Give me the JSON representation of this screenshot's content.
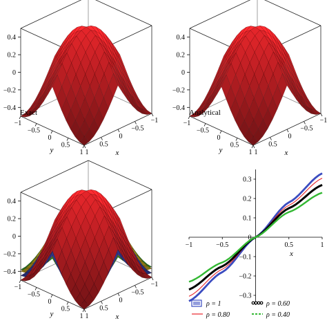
{
  "chart_data": [
    {
      "type": "surface",
      "panel": "top-left",
      "label": "Exact",
      "xlabel": "x",
      "ylabel": "y",
      "x_ticks": [
        "1",
        "0.5",
        "0",
        "−0.5",
        "−1"
      ],
      "y_ticks": [
        "−1",
        "−0.5",
        "0",
        "0.5",
        "1"
      ],
      "z_ticks": [
        "0.4",
        "0.2",
        "0",
        "−0.2",
        "−0.4"
      ],
      "xlim": [
        -1,
        1
      ],
      "ylim": [
        -1,
        1
      ],
      "zlim": [
        -0.5,
        0.5
      ],
      "surface_color": "#e8262b",
      "series": [
        {
          "color": "#e8262b",
          "peak_x": 0,
          "peak_y": 0,
          "peak_z": 0.5,
          "corner_z": -0.5
        }
      ]
    },
    {
      "type": "surface",
      "panel": "top-right",
      "label": "Analytical",
      "xlabel": "x",
      "ylabel": "y",
      "x_ticks": [
        "1",
        "0.5",
        "0",
        "−0.5",
        "−1"
      ],
      "y_ticks": [
        "−1",
        "−0.5",
        "0",
        "0.5",
        "1"
      ],
      "z_ticks": [
        "0.4",
        "0.2",
        "0",
        "−0.2",
        "−0.4"
      ],
      "xlim": [
        -1,
        1
      ],
      "ylim": [
        -1,
        1
      ],
      "zlim": [
        -0.5,
        0.5
      ],
      "surface_color": "#e8262b",
      "series": [
        {
          "color": "#e8262b",
          "peak_x": 0,
          "peak_y": 0,
          "peak_z": 0.5,
          "corner_z": -0.5
        }
      ]
    },
    {
      "type": "surface",
      "panel": "bottom-left",
      "label": "",
      "xlabel": "x",
      "ylabel": "y",
      "x_ticks": [
        "1",
        "0.5",
        "0",
        "−0.5",
        "−1"
      ],
      "y_ticks": [
        "−1",
        "−0.5",
        "0",
        "0.5",
        "1"
      ],
      "z_ticks": [
        "0.4",
        "0.2",
        "0",
        "−0.2",
        "−0.4"
      ],
      "xlim": [
        -1,
        1
      ],
      "ylim": [
        -1,
        1
      ],
      "zlim": [
        -0.5,
        0.5
      ],
      "series": [
        {
          "color": "#e8262b",
          "peak_x": 0,
          "peak_y": 0,
          "peak_z": 0.5,
          "corner_z": -0.5
        },
        {
          "color": "#3b4cc0",
          "peak_x": 0,
          "peak_y": 0,
          "peak_z": 0.33,
          "corner_z": -0.45
        },
        {
          "color": "#e0c020",
          "peak_x": 0,
          "peak_y": 0,
          "peak_z": 0.26,
          "corner_z": -0.4
        },
        {
          "color": "#33b833",
          "peak_x": 0,
          "peak_y": 0,
          "peak_z": 0.2,
          "corner_z": -0.38
        }
      ]
    },
    {
      "type": "line",
      "panel": "bottom-right",
      "xlabel": "x",
      "ylabel": "",
      "xlim": [
        -1,
        1
      ],
      "ylim": [
        -0.35,
        0.35
      ],
      "x_ticks": [
        "−1",
        "−0.5",
        "0",
        "0.5",
        "1"
      ],
      "y_ticks": [
        "0.3",
        "0.2",
        "0.1",
        "0",
        "−0.1",
        "−0.2",
        "−0.3"
      ],
      "series": [
        {
          "name": "ρ = 1",
          "color": "#3b4cc0",
          "style": "hatched",
          "x": [
            -1,
            -0.5,
            0,
            0.5,
            1
          ],
          "y": [
            -0.33,
            -0.18,
            0,
            0.18,
            0.33
          ]
        },
        {
          "name": "ρ = 0.80",
          "color": "#e8262b",
          "style": "thin",
          "x": [
            -1,
            -0.5,
            0,
            0.5,
            1
          ],
          "y": [
            -0.305,
            -0.165,
            0,
            0.165,
            0.305
          ]
        },
        {
          "name": "ρ = 0.60",
          "color": "#000000",
          "style": "dotted",
          "x": [
            -1,
            -0.5,
            0,
            0.5,
            1
          ],
          "y": [
            -0.27,
            -0.15,
            0,
            0.15,
            0.27
          ]
        },
        {
          "name": "ρ = 0.40",
          "color": "#33b833",
          "style": "dashed",
          "x": [
            -1,
            -0.5,
            0,
            0.5,
            1
          ],
          "y": [
            -0.23,
            -0.13,
            0,
            0.13,
            0.23
          ]
        }
      ]
    }
  ]
}
